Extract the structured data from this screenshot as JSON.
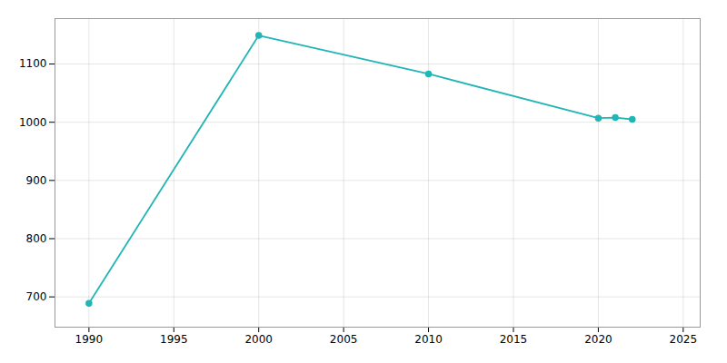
{
  "chart_data": {
    "type": "line",
    "x": [
      1990,
      2000,
      2010,
      2020,
      2021,
      2022
    ],
    "values": [
      689,
      1149,
      1083,
      1007,
      1008,
      1005
    ],
    "color": "#22b5b5",
    "marker": "circle",
    "xlim": [
      1988,
      2026
    ],
    "xticks": [
      1990,
      1995,
      2000,
      2005,
      2010,
      2015,
      2020,
      2025
    ],
    "ylim": [
      648,
      1178
    ],
    "yticks": [
      700,
      800,
      900,
      1000,
      1100
    ],
    "grid": true
  }
}
